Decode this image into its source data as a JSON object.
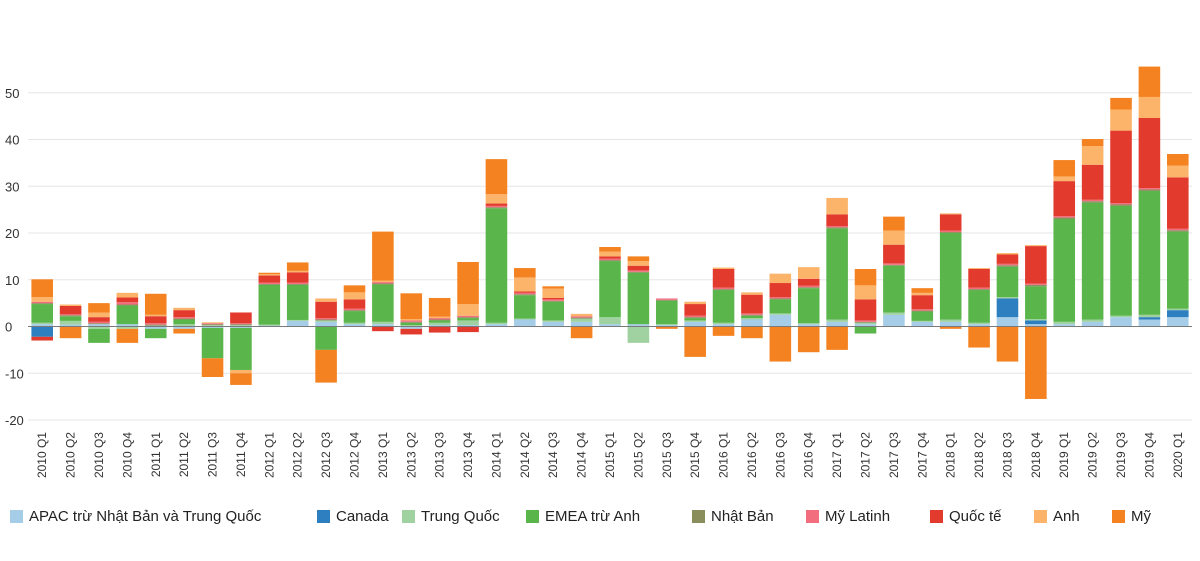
{
  "chart_data": {
    "type": "bar",
    "stacked": true,
    "title": "",
    "xlabel": "",
    "ylabel": "",
    "ylim": [
      -20,
      60
    ],
    "yticks": [
      -20,
      -10,
      0,
      10,
      20,
      30,
      40,
      50
    ],
    "grid": true,
    "legend_position": "bottom",
    "categories": [
      "2010 Q1",
      "2010 Q2",
      "2010 Q3",
      "2010 Q4",
      "2011 Q1",
      "2011 Q2",
      "2011 Q3",
      "2011 Q4",
      "2012 Q1",
      "2012 Q2",
      "2012 Q3",
      "2012 Q4",
      "2013 Q1",
      "2013 Q2",
      "2013 Q3",
      "2013 Q4",
      "2014 Q1",
      "2014 Q2",
      "2014 Q3",
      "2014 Q4",
      "2015 Q1",
      "2015 Q2",
      "2015 Q3",
      "2015 Q4",
      "2016 Q1",
      "2016 Q2",
      "2016 Q3",
      "2016 Q4",
      "2017 Q1",
      "2017 Q2",
      "2017 Q3",
      "2017 Q4",
      "2018 Q1",
      "2018 Q2",
      "2018 Q3",
      "2018 Q4",
      "2019 Q1",
      "2019 Q2",
      "2019 Q3",
      "2019 Q4",
      "2020 Q1"
    ],
    "series": [
      {
        "name": "APAC trừ Nhật Bản và Trung Quốc",
        "color": "#a6cde8",
        "values": [
          0.5,
          0.4,
          0.5,
          0.5,
          -0.5,
          -0.5,
          -0.3,
          -0.3,
          0.2,
          1.2,
          1.0,
          0.5,
          0.5,
          -0.5,
          0.3,
          0.3,
          0.5,
          1.5,
          1.0,
          1.0,
          0.5,
          0.5,
          0.3,
          1.0,
          0.5,
          1.5,
          2.5,
          0.5,
          1.0,
          0.5,
          2.5,
          1.0,
          1.0,
          0.5,
          2.0,
          0.5,
          0.5,
          1.0,
          2.0,
          1.5,
          2.0
        ]
      },
      {
        "name": "Canada",
        "color": "#2e7fc0",
        "values": [
          -2.2,
          0,
          0,
          0,
          0,
          0,
          0,
          0,
          0,
          0,
          0,
          0,
          0,
          0,
          0,
          0,
          0,
          0,
          0,
          0,
          0,
          0,
          0,
          0,
          0,
          0,
          0,
          0,
          0,
          0,
          0,
          0,
          0,
          0,
          4.0,
          0.8,
          0,
          0,
          0,
          0.5,
          1.5
        ]
      },
      {
        "name": "Trung Quốc",
        "color": "#9fd2a0",
        "values": [
          0.3,
          0.8,
          -0.5,
          -0.5,
          0.2,
          0.5,
          0.3,
          0.3,
          0.2,
          0.2,
          0.3,
          0.3,
          0.5,
          0.3,
          0.5,
          1.0,
          0.3,
          0.2,
          0.3,
          0.7,
          1.5,
          -3.5,
          0.2,
          0.3,
          0.3,
          0.3,
          0.3,
          0.2,
          0.5,
          0.3,
          0.5,
          0.2,
          0.5,
          0.3,
          0.3,
          0.3,
          0.5,
          0.5,
          0.3,
          0.5,
          0.3
        ]
      },
      {
        "name": "EMEA trừ Anh",
        "color": "#5ab54b",
        "values": [
          4.0,
          1.0,
          -3.0,
          4.0,
          -2.0,
          1.0,
          -6.5,
          -9.0,
          8.5,
          7.5,
          -5.0,
          2.5,
          8.0,
          0.5,
          0.5,
          0.5,
          24.5,
          5.0,
          4.0,
          0,
          12.0,
          11.0,
          5.0,
          0.5,
          7.0,
          0.5,
          3.0,
          7.5,
          19.5,
          -1.5,
          10.0,
          2.0,
          18.5,
          7.0,
          6.5,
          7.0,
          22.0,
          25.0,
          23.5,
          26.5,
          16.5
        ]
      },
      {
        "name": "Nhật Bản",
        "color": "#8a8e5c",
        "values": [
          0.2,
          0.2,
          0.2,
          0.2,
          0.2,
          0.2,
          0.2,
          0.2,
          0.2,
          0.2,
          0.2,
          0.2,
          0.2,
          0.2,
          0.2,
          0.2,
          0.2,
          0.2,
          0.2,
          0.2,
          0.2,
          0.2,
          0.2,
          0.2,
          0.2,
          0.2,
          0.2,
          0.2,
          0.2,
          0.2,
          0.2,
          0.2,
          0.2,
          0.2,
          0.3,
          0.3,
          0.3,
          0.3,
          0.3,
          0.3,
          0.3
        ]
      },
      {
        "name": "Mỹ Latinh",
        "color": "#f26d7d",
        "values": [
          0.3,
          0.2,
          0.3,
          0.5,
          0.3,
          0.3,
          0.2,
          0.2,
          0.3,
          0.3,
          0.3,
          0.3,
          0.3,
          0.3,
          0.3,
          0.3,
          0.3,
          0.3,
          0.3,
          0.3,
          0.3,
          0.3,
          0.3,
          0.3,
          0.3,
          0.3,
          0.3,
          0.3,
          0.3,
          0.3,
          0.3,
          0.3,
          0.3,
          0.3,
          0.3,
          0.3,
          0.3,
          0.3,
          0.3,
          0.3,
          0.3
        ]
      },
      {
        "name": "Quốc tế",
        "color": "#e23b2e",
        "values": [
          -0.8,
          1.8,
          1.0,
          1.0,
          1.5,
          1.5,
          0,
          2.3,
          1.5,
          2.2,
          3.5,
          2.0,
          -1.0,
          -1.2,
          -1.3,
          -1.2,
          0.5,
          0.3,
          0.3,
          0,
          0.5,
          1.0,
          0,
          2.5,
          4.0,
          4.0,
          3.0,
          1.5,
          2.5,
          4.5,
          4.0,
          3.0,
          3.5,
          4.0,
          2.0,
          8.0,
          7.5,
          7.5,
          15.5,
          15.0,
          11.0
        ]
      },
      {
        "name": "Anh",
        "color": "#fbb46a",
        "values": [
          1.0,
          0.3,
          1.0,
          1.0,
          0.3,
          0.5,
          0.2,
          -0.7,
          0.3,
          0.3,
          0.7,
          1.5,
          0.3,
          0.3,
          0.3,
          2.5,
          2.0,
          3.0,
          2.0,
          0.5,
          1.0,
          1.0,
          0,
          0.5,
          0.3,
          0.5,
          2.0,
          2.5,
          3.5,
          3.0,
          3.0,
          0.5,
          0.2,
          0.2,
          0.3,
          0.2,
          1.0,
          4.0,
          4.5,
          4.5,
          2.5
        ]
      },
      {
        "name": "Mỹ",
        "color": "#f58220",
        "values": [
          3.8,
          -2.5,
          2.0,
          -3.0,
          4.5,
          -1.0,
          -4.0,
          -2.5,
          0.3,
          1.8,
          -7.0,
          1.5,
          10.5,
          5.5,
          4.0,
          9.0,
          7.5,
          2.0,
          0.5,
          -2.5,
          1.0,
          1.0,
          -0.5,
          -6.5,
          -2.0,
          -2.5,
          -7.5,
          -5.5,
          -5.0,
          3.5,
          3.0,
          1.0,
          -0.5,
          -4.5,
          -7.5,
          -15.5,
          3.5,
          1.5,
          2.5,
          6.5,
          2.5
        ]
      }
    ]
  }
}
